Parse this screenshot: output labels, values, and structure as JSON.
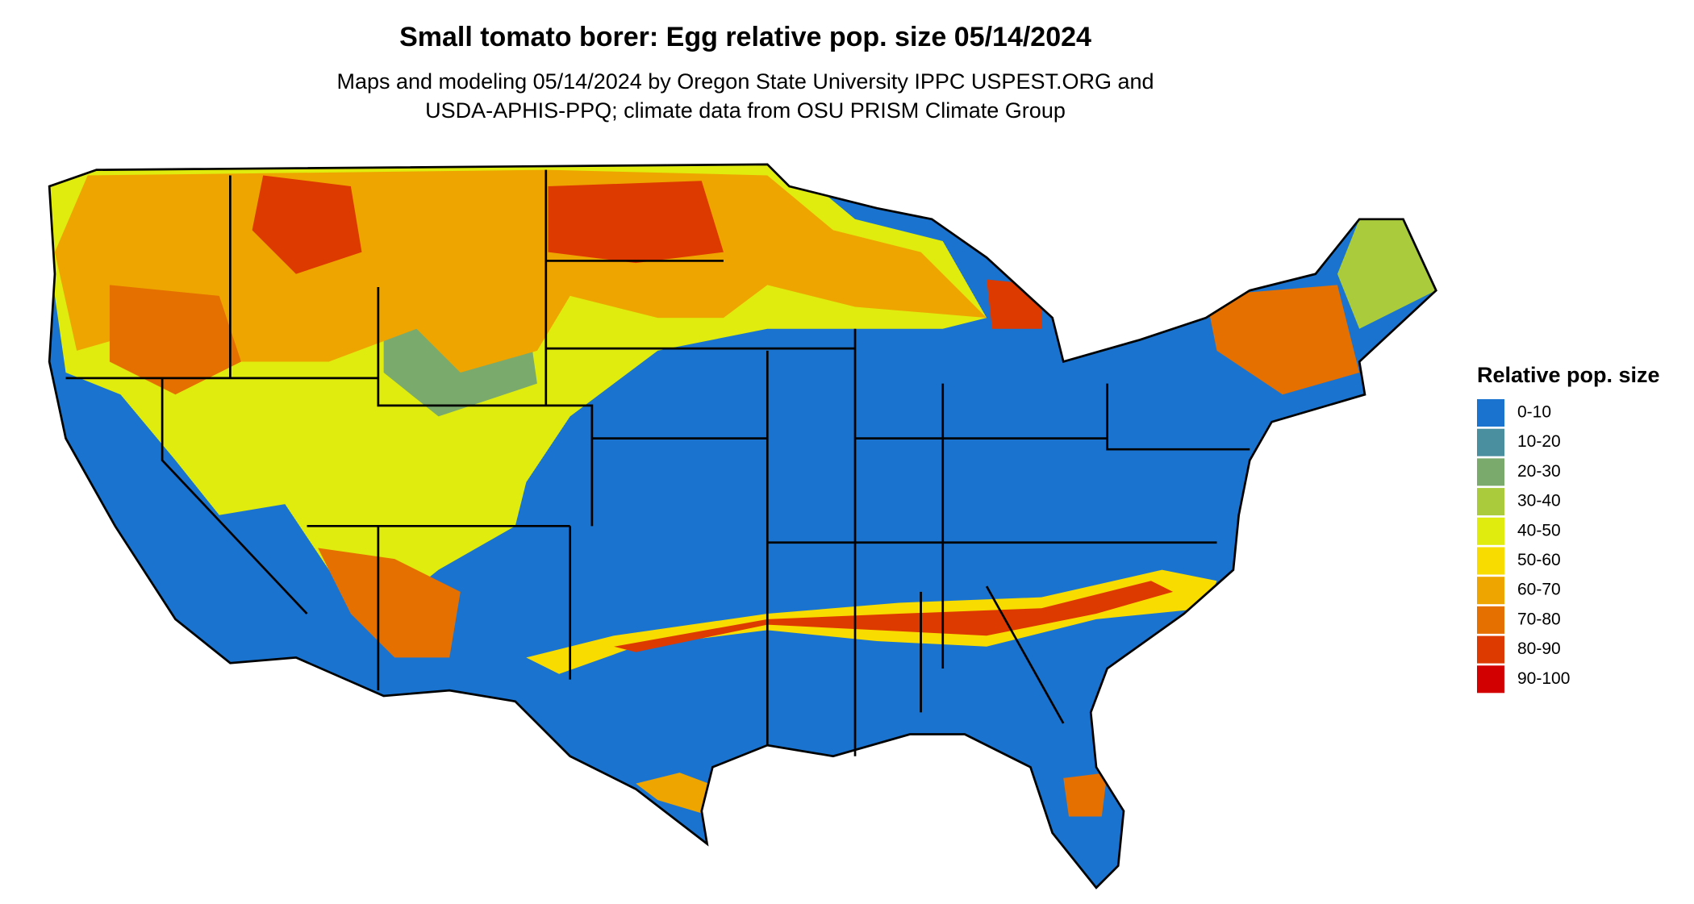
{
  "header": {
    "title": "Small tomato borer: Egg relative pop. size 05/14/2024",
    "subtitle_lines": [
      "Maps and modeling 05/14/2024 by Oregon State University IPPC USPEST.ORG and",
      "USDA-APHIS-PPQ; climate data from OSU PRISM Climate Group"
    ]
  },
  "legend": {
    "title": "Relative pop. size",
    "items": [
      {
        "label": "0-10",
        "color": "#1a74cf"
      },
      {
        "label": "10-20",
        "color": "#4a8fa0"
      },
      {
        "label": "20-30",
        "color": "#7aab6c"
      },
      {
        "label": "30-40",
        "color": "#aacc3c"
      },
      {
        "label": "40-50",
        "color": "#dfec0e"
      },
      {
        "label": "50-60",
        "color": "#f8dc00"
      },
      {
        "label": "60-70",
        "color": "#eea500"
      },
      {
        "label": "70-80",
        "color": "#e57000"
      },
      {
        "label": "80-90",
        "color": "#dd3a00"
      },
      {
        "label": "90-100",
        "color": "#d20000"
      }
    ]
  }
}
